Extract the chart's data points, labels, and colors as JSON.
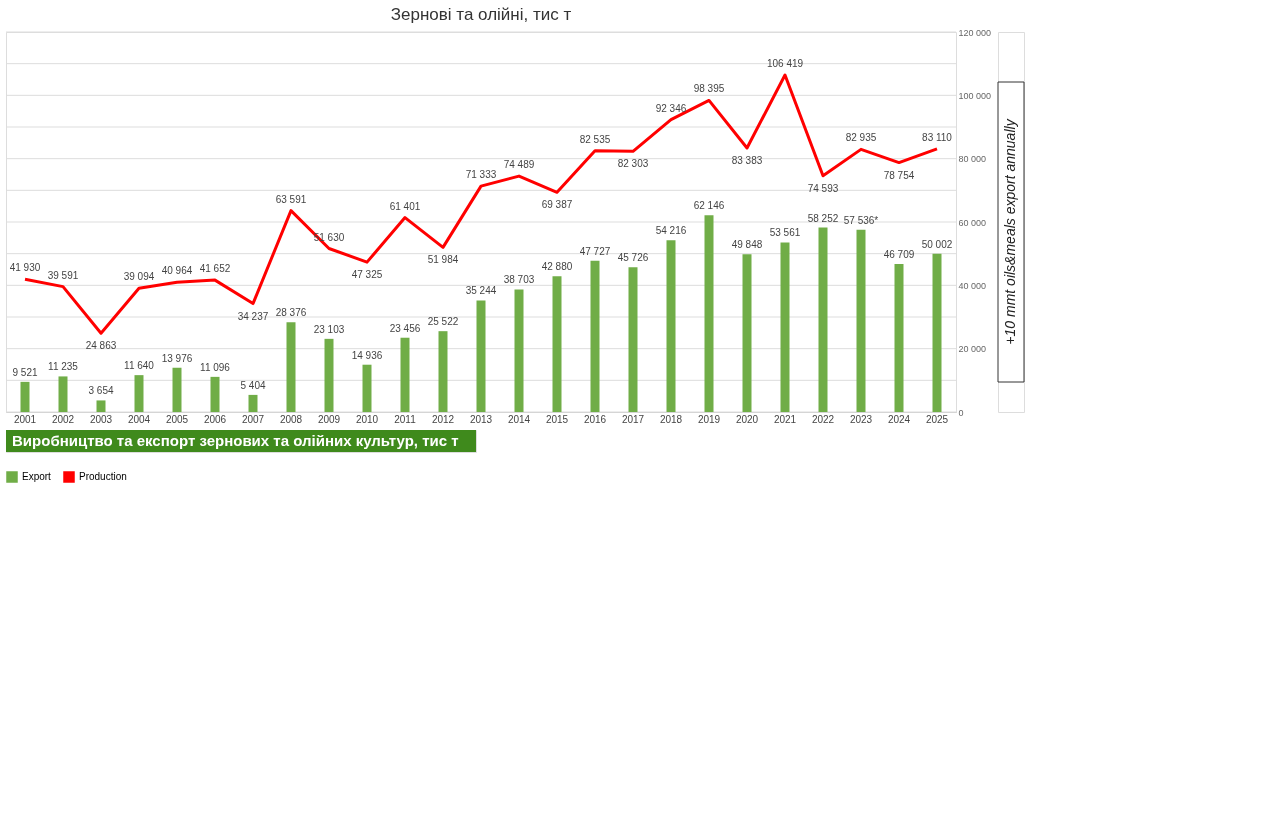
{
  "chart_data": {
    "type": "bar",
    "title": "Зернові та олійні, тис т",
    "categories": [
      "2001",
      "2002",
      "2003",
      "2004",
      "2005",
      "2006",
      "2007",
      "2008",
      "2009",
      "2010",
      "2011",
      "2012",
      "2013",
      "2014",
      "2015",
      "2016",
      "2017",
      "2018",
      "2019",
      "2020",
      "2021",
      "2022",
      "2023",
      "2024",
      "2025"
    ],
    "series": [
      {
        "name": "Export",
        "color": "#70ad47",
        "values": [
          9521,
          11235,
          3654,
          11640,
          13976,
          11096,
          5404,
          28376,
          23103,
          14936,
          23456,
          25522,
          35244,
          38703,
          42880,
          47727,
          45726,
          54216,
          62146,
          49848,
          53561,
          58252,
          57536,
          46709,
          50002
        ],
        "value_labels": [
          "9 521",
          "11 235",
          "3 654",
          "11 640",
          "13 976",
          "11 096",
          "5 404",
          "28 376",
          "23 103",
          "14 936",
          "23 456",
          "25 522",
          "35 244",
          "38 703",
          "42 880",
          "47 727",
          "45 726",
          "54 216",
          "62 146",
          "49 848",
          "53 561",
          "58 252",
          "57 536*",
          "46 709",
          "50 002"
        ]
      },
      {
        "name": "Production",
        "type": "line",
        "color": "#ff0000",
        "values": [
          41930,
          39591,
          24863,
          39094,
          40964,
          41652,
          34237,
          63591,
          51630,
          47325,
          61401,
          51984,
          71333,
          74489,
          69387,
          82535,
          82303,
          92346,
          98395,
          83383,
          106419,
          74593,
          82935,
          78754,
          83110
        ],
        "value_labels": [
          "41 930",
          "39 591",
          "24 863",
          "39 094",
          "40 964",
          "41 652",
          "34 237",
          "63 591",
          "51 630",
          "47 325",
          "61 401",
          "51 984",
          "71 333",
          "74 489",
          "69 387",
          "82 535",
          "82 303",
          "92 346",
          "98 395",
          "83 383",
          "106 419",
          "74 593",
          "82 935",
          "78 754",
          "83 110"
        ]
      }
    ],
    "ylim": [
      0,
      120000
    ],
    "yticks": [
      {
        "value": 0,
        "label": "0"
      },
      {
        "value": 10000,
        "label": null
      },
      {
        "value": 20000,
        "label": "20 000"
      },
      {
        "value": 30000,
        "label": null
      },
      {
        "value": 40000,
        "label": "40 000"
      },
      {
        "value": 50000,
        "label": null
      },
      {
        "value": 60000,
        "label": "60 000"
      },
      {
        "value": 70000,
        "label": null
      },
      {
        "value": 80000,
        "label": "80 000"
      },
      {
        "value": 90000,
        "label": null
      },
      {
        "value": 100000,
        "label": "100 000"
      },
      {
        "value": 110000,
        "label": null
      },
      {
        "value": 120000,
        "label": "120 000"
      }
    ],
    "grid": "y",
    "legend": "bottom",
    "line_style": "solid",
    "marker": "none",
    "annotations": [
      "+10 mmt oils&meals export annually",
      "Виробництво та експорт зернових та олійних культур, тис т"
    ]
  }
}
